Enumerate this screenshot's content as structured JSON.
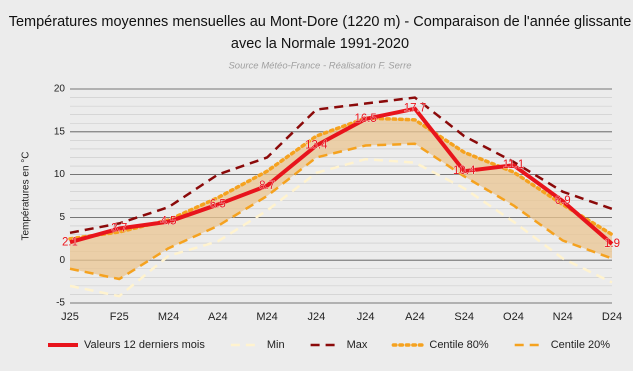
{
  "chart_data": {
    "type": "line",
    "title": [
      "Températures moyennes mensuelles au Mont-Dore (1220 m) - Comparaison de l'année glissante",
      "avec la Normale 1991-2020"
    ],
    "subtitle": "Source Météo-France - Réalisation F. Serre",
    "y_label": "Températures en °C",
    "categories": [
      "J25",
      "F25",
      "M24",
      "A24",
      "M24",
      "J24",
      "J24",
      "A24",
      "S24",
      "O24",
      "N24",
      "D24"
    ],
    "ylim": [
      -5,
      20
    ],
    "yticks": [
      -5,
      0,
      5,
      10,
      15,
      20
    ],
    "grid": true,
    "minor_grid": 1,
    "band_color": "#ebc592",
    "series": [
      {
        "name": "Valeurs 12 derniers mois",
        "color": "#e8141c",
        "style": "solid",
        "labels": true,
        "values": [
          2.1,
          3.7,
          4.5,
          6.5,
          8.7,
          13.4,
          16.5,
          17.7,
          10.4,
          11.1,
          6.9,
          1.9
        ]
      },
      {
        "name": "Min",
        "color": "#fff3cf",
        "style": "dashed",
        "values": [
          -3,
          -4.2,
          0.5,
          2.2,
          5.8,
          10.2,
          11.8,
          11.4,
          8.4,
          4.5,
          0.2,
          -2.6
        ]
      },
      {
        "name": "Max",
        "color": "#8b0a0a",
        "style": "dashed",
        "values": [
          3.2,
          4.3,
          6.2,
          10,
          12,
          17.6,
          18.3,
          19,
          14.5,
          11.5,
          8,
          6
        ]
      },
      {
        "name": "Centile 80%",
        "color": "#f5a21f",
        "style": "dotted",
        "band": "upper",
        "values": [
          2.5,
          3.3,
          4.7,
          7.3,
          10.4,
          14.5,
          16.6,
          16.4,
          12.6,
          10.3,
          6.5,
          3
        ]
      },
      {
        "name": "Centile 20%",
        "color": "#f5a21f",
        "style": "dashed",
        "band": "lower",
        "values": [
          -1,
          -2.2,
          1.4,
          4,
          7.5,
          12,
          13.4,
          13.6,
          9.8,
          6.4,
          2.3,
          0.2
        ]
      }
    ]
  }
}
